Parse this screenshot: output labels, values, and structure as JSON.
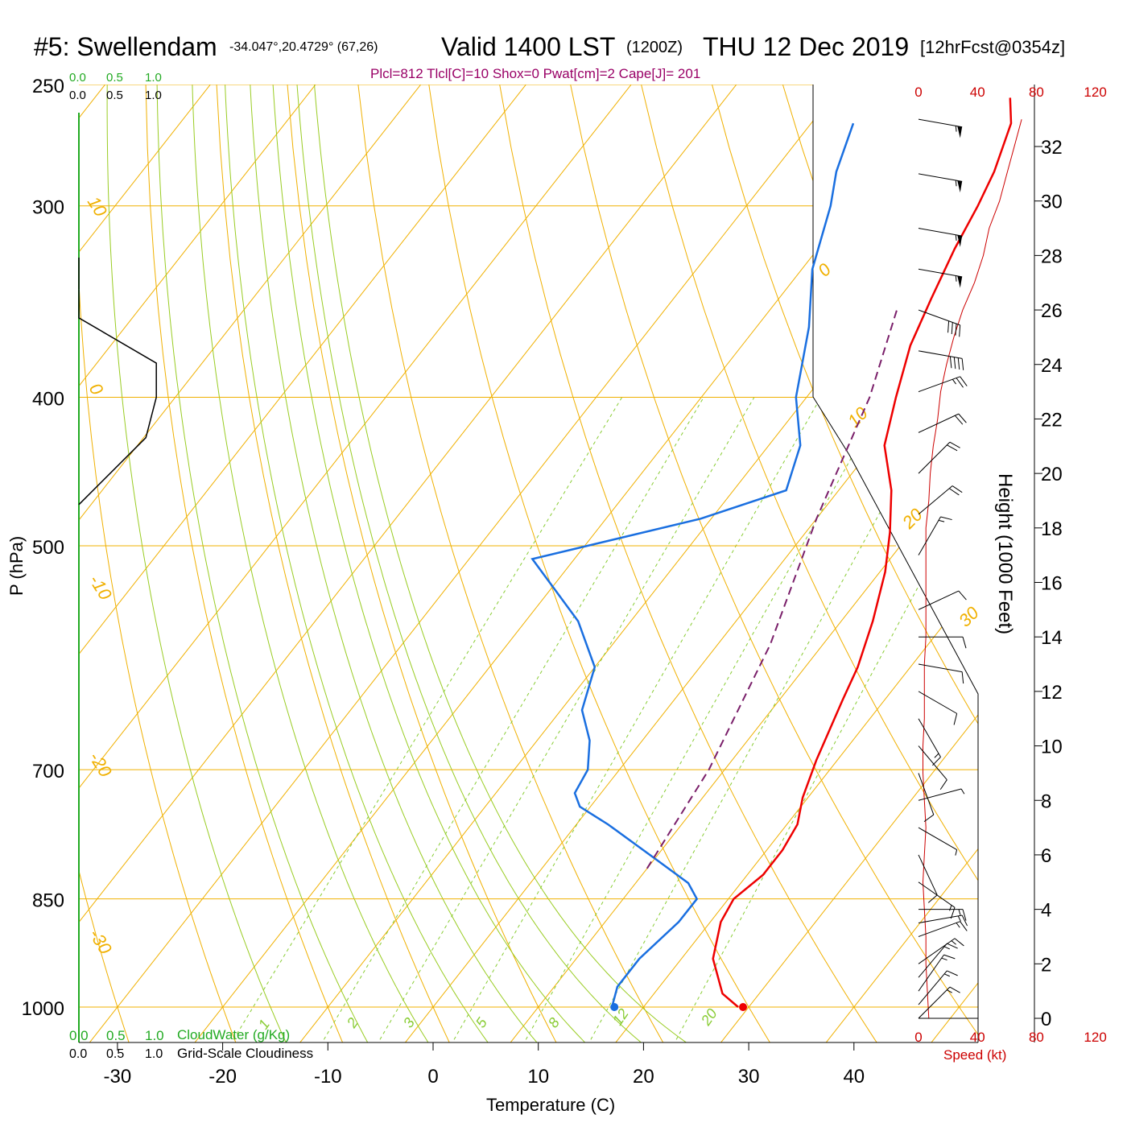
{
  "header": {
    "station": "#5: Swellendam",
    "coords": "-34.047°,20.4729° (67,26)",
    "valid": "Valid 1400 LST",
    "utc": "(1200Z)",
    "date": "THU 12 Dec 2019",
    "forecast": "[12hrFcst@0354z]"
  },
  "params": "Plcl=812 Tlcl[C]=10 Shox=0 Pwat[cm]=2 Cape[J]= 201",
  "cloud_scale": {
    "top_green": [
      "0.0",
      "0.5",
      "1.0"
    ],
    "top_black": [
      "0.0",
      "0.5",
      "1.0"
    ],
    "bottom_green": [
      "0.0",
      "0.5",
      "1.0"
    ],
    "bottom_black": [
      "0.0",
      "0.5",
      "1.0"
    ],
    "cloudwater_label": "CloudWater (g/Kg)",
    "cloudiness_label": "Grid-Scale Cloudiness"
  },
  "axes": {
    "ylabel": "P (hPa)",
    "xlabel": "Temperature (C)",
    "height_label": "Height (1000 Feet)",
    "speed_label": "Speed (kt)",
    "pressure_ticks": [
      "250",
      "300",
      "400",
      "500",
      "700",
      "850",
      "1000"
    ],
    "temp_ticks": [
      "-30",
      "-20",
      "-10",
      "0",
      "10",
      "20",
      "30",
      "40"
    ],
    "height_ticks": [
      "32",
      "30",
      "28",
      "26",
      "24",
      "22",
      "20",
      "18",
      "16",
      "14",
      "12",
      "10",
      "8",
      "6",
      "4",
      "2",
      "0"
    ],
    "speed_ticks": [
      "0",
      "40",
      "80",
      "120"
    ]
  },
  "isotherm_labels": [
    "10",
    "0",
    "-10",
    "-20",
    "-30",
    "0",
    "10",
    "20",
    "30"
  ],
  "mixing_ratio_labels": [
    "1",
    "2",
    "3",
    "5",
    "8",
    "12",
    "20"
  ],
  "colors": {
    "temperature": "#ee0000",
    "dewpoint": "#1a6fe0",
    "parcel": "#7a1f6a",
    "isotherm": "#f0b000",
    "adiabat": "#99cc22",
    "mixing_ratio": "#88cc33",
    "speed": "#cc0000",
    "params": "#990066",
    "cloud_green": "#22aa22"
  },
  "chart_data": {
    "type": "line",
    "title": "Valid 1400 LST (1200Z) THU 12 Dec 2019",
    "xlabel": "Temperature (C)",
    "ylabel": "P (hPa)",
    "xlim": [
      -34,
      36
    ],
    "ylim": [
      1000,
      250
    ],
    "y_scale": "log-pressure",
    "skew": "skew-T",
    "grid": true,
    "series": [
      {
        "points": [
          [
            29,
            1000
          ],
          [
            26.5,
            980
          ],
          [
            23,
            930
          ],
          [
            21,
            880
          ],
          [
            20.5,
            850
          ],
          [
            21.5,
            820
          ],
          [
            21.5,
            790
          ],
          [
            21,
            760
          ],
          [
            19.5,
            730
          ],
          [
            18,
            690
          ],
          [
            16,
            630
          ],
          [
            15,
            600
          ],
          [
            13,
            560
          ],
          [
            10.5,
            520
          ],
          [
            8,
            490
          ],
          [
            5,
            460
          ],
          [
            1,
            430
          ],
          [
            -1.5,
            400
          ],
          [
            -4,
            370
          ],
          [
            -5.5,
            345
          ],
          [
            -7,
            320
          ],
          [
            -8,
            300
          ],
          [
            -9,
            285
          ],
          [
            -11,
            265
          ],
          [
            -13,
            255
          ]
        ]
      },
      {
        "points": [
          [
            17,
            1000
          ],
          [
            16,
            970
          ],
          [
            16,
            930
          ],
          [
            17,
            880
          ],
          [
            17,
            850
          ],
          [
            15,
            830
          ],
          [
            10,
            800
          ],
          [
            3,
            760
          ],
          [
            -1,
            740
          ],
          [
            -2.5,
            725
          ],
          [
            -3,
            700
          ],
          [
            -5,
            670
          ],
          [
            -8,
            640
          ],
          [
            -10,
            600
          ],
          [
            -15,
            560
          ],
          [
            -24,
            510
          ],
          [
            -11,
            480
          ],
          [
            -5,
            460
          ],
          [
            -7,
            430
          ],
          [
            -11,
            400
          ],
          [
            -15,
            360
          ],
          [
            -19,
            330
          ],
          [
            -22,
            300
          ],
          [
            -24,
            285
          ],
          [
            -26,
            265
          ]
        ]
      },
      {
        "points": [
          [
            10,
            812
          ],
          [
            8.5,
            700
          ],
          [
            5,
            580
          ],
          [
            0,
            480
          ],
          [
            -4,
            400
          ],
          [
            -8,
            350
          ]
        ]
      }
    ],
    "cloud_profile": [
      [
        0.0,
        340
      ],
      [
        0.0,
        355
      ],
      [
        0.37,
        380
      ],
      [
        0.37,
        400
      ],
      [
        0.32,
        425
      ],
      [
        0.0,
        470
      ]
    ],
    "wind_speed_kt": [
      [
        0,
        7
      ],
      [
        1,
        6
      ],
      [
        2,
        5
      ],
      [
        3,
        5
      ],
      [
        4,
        4
      ],
      [
        5,
        3
      ],
      [
        6,
        4
      ],
      [
        7,
        5
      ],
      [
        8,
        4
      ],
      [
        9,
        3
      ],
      [
        10,
        3
      ],
      [
        11,
        4
      ],
      [
        12,
        4
      ],
      [
        13,
        4
      ],
      [
        14,
        5
      ],
      [
        15,
        5
      ],
      [
        16,
        5
      ],
      [
        17,
        5
      ],
      [
        18,
        5
      ],
      [
        19,
        7
      ],
      [
        20,
        8
      ],
      [
        21,
        10
      ],
      [
        22,
        13
      ],
      [
        23,
        15
      ],
      [
        24,
        19
      ],
      [
        25,
        24
      ],
      [
        26,
        30
      ],
      [
        27,
        38
      ],
      [
        28,
        44
      ],
      [
        29,
        48
      ],
      [
        30,
        55
      ],
      [
        31,
        60
      ],
      [
        32,
        65
      ],
      [
        33,
        70
      ]
    ],
    "wind_barbs": [
      [
        0,
        225,
        15
      ],
      [
        0.5,
        220,
        15
      ],
      [
        1,
        215,
        15
      ],
      [
        1.5,
        220,
        15
      ],
      [
        2,
        235,
        15
      ],
      [
        3,
        250,
        15
      ],
      [
        3.5,
        260,
        15
      ],
      [
        4,
        270,
        15
      ],
      [
        5,
        305,
        15
      ],
      [
        6,
        335,
        10
      ],
      [
        7,
        300,
        5
      ],
      [
        8,
        255,
        5
      ],
      [
        9,
        340,
        10
      ],
      [
        10,
        320,
        10
      ],
      [
        11,
        330,
        15
      ],
      [
        12,
        300,
        10
      ],
      [
        13,
        280,
        10
      ],
      [
        14,
        270,
        10
      ],
      [
        15,
        245,
        10
      ],
      [
        17,
        210,
        15
      ],
      [
        18.5,
        230,
        20
      ],
      [
        20,
        225,
        20
      ],
      [
        21.5,
        245,
        20
      ],
      [
        23,
        250,
        25
      ],
      [
        24.5,
        280,
        40
      ],
      [
        26,
        290,
        40
      ],
      [
        27.5,
        280,
        55
      ],
      [
        29,
        280,
        55
      ],
      [
        31,
        280,
        55
      ],
      [
        33,
        280,
        55
      ]
    ]
  }
}
